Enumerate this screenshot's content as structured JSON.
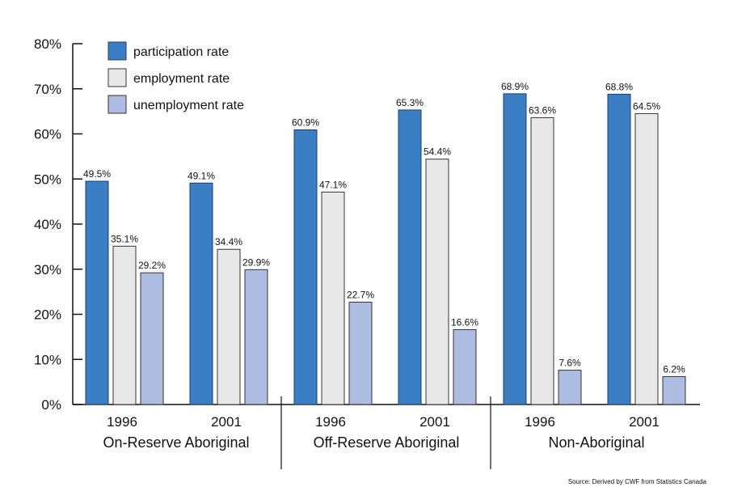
{
  "chart_data": {
    "type": "bar",
    "title": "",
    "xlabel": "",
    "ylabel": "",
    "ylim": [
      0,
      80
    ],
    "yticks": [
      "0%",
      "10%",
      "20%",
      "30%",
      "40%",
      "50%",
      "60%",
      "70%",
      "80%"
    ],
    "legend_position": "top-left",
    "groups": [
      {
        "name": "On-Reserve Aboriginal",
        "years": [
          "1996",
          "2001"
        ]
      },
      {
        "name": "Off-Reserve Aboriginal",
        "years": [
          "1996",
          "2001"
        ]
      },
      {
        "name": "Non-Aboriginal",
        "years": [
          "1996",
          "2001"
        ]
      }
    ],
    "series": [
      {
        "name": "participation rate",
        "color": "#3a7ec6",
        "values": [
          49.5,
          49.1,
          60.9,
          65.3,
          68.9,
          68.8
        ],
        "labels": [
          "49.5%",
          "49.1%",
          "60.9%",
          "65.3%",
          "68.9%",
          "68.8%"
        ]
      },
      {
        "name": "employment rate",
        "color": "#e8e8e8",
        "values": [
          35.1,
          34.4,
          47.1,
          54.4,
          63.6,
          64.5
        ],
        "labels": [
          "35.1%",
          "34.4%",
          "47.1%",
          "54.4%",
          "63.6%",
          "64.5%"
        ]
      },
      {
        "name": "unemployment rate",
        "color": "#adbde2",
        "values": [
          29.2,
          29.9,
          22.7,
          16.6,
          7.6,
          6.2
        ],
        "labels": [
          "29.2%",
          "29.9%",
          "22.7%",
          "16.6%",
          "7.6%",
          "6.2%"
        ]
      }
    ],
    "source": "Source: Derived by CWF from Statistics Canada"
  }
}
